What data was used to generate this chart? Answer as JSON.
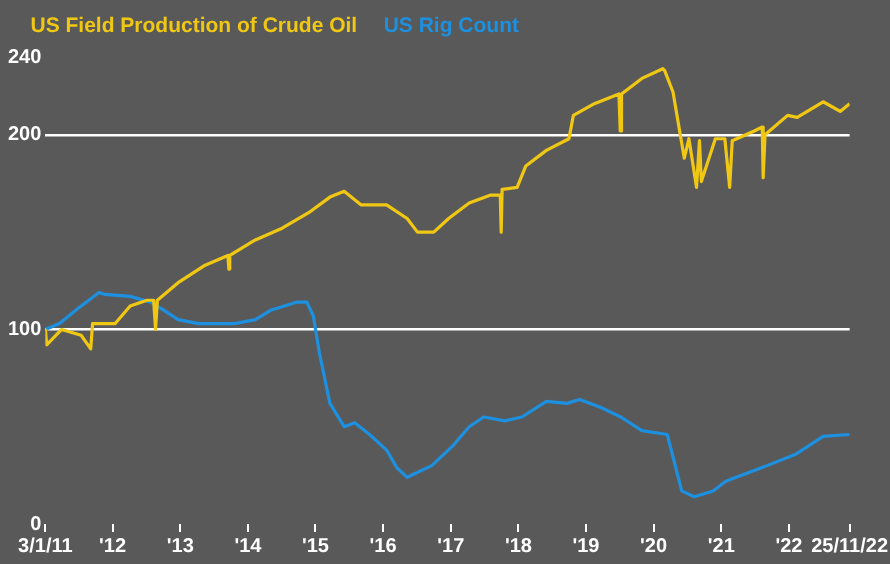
{
  "chart_data": {
    "type": "line",
    "legend": "top left",
    "grid": "y",
    "marker": "none",
    "line_style": "solid",
    "ylim": [
      0,
      240
    ],
    "yticks": [
      0,
      100,
      200,
      240
    ],
    "xlim": [
      "2011-01-03",
      "2022-11-25"
    ],
    "xticks": [
      {
        "value": "2011-01-03",
        "label": "3/1/11"
      },
      {
        "value": "2012-01-01",
        "label": "'12"
      },
      {
        "value": "2013-01-01",
        "label": "'13"
      },
      {
        "value": "2014-01-01",
        "label": "'14"
      },
      {
        "value": "2015-01-01",
        "label": "'15"
      },
      {
        "value": "2016-01-01",
        "label": "'16"
      },
      {
        "value": "2017-01-01",
        "label": "'17"
      },
      {
        "value": "2018-01-01",
        "label": "'18"
      },
      {
        "value": "2019-01-01",
        "label": "'19"
      },
      {
        "value": "2020-01-01",
        "label": "'20"
      },
      {
        "value": "2021-01-01",
        "label": "'21"
      },
      {
        "value": "2022-01-01",
        "label": "'22"
      },
      {
        "value": "2022-11-25",
        "label": "25/11/22"
      }
    ],
    "series": [
      {
        "name": "US Field Production of Crude Oil",
        "color": "#f0c814",
        "x": [
          "2011-01-03",
          "2011-01-10",
          "2011-04-01",
          "2011-07-15",
          "2011-09-05",
          "2011-09-15",
          "2012-01-15",
          "2012-04-05",
          "2012-07-05",
          "2012-08-10",
          "2012-08-20",
          "2012-08-30",
          "2012-12-20",
          "2013-05-15",
          "2013-09-15",
          "2013-09-20",
          "2013-09-25",
          "2014-02-10",
          "2014-07-05",
          "2014-11-25",
          "2015-03-20",
          "2015-06-05",
          "2015-09-05",
          "2016-01-20",
          "2016-05-10",
          "2016-07-05",
          "2016-10-01",
          "2016-12-20",
          "2017-04-10",
          "2017-08-01",
          "2017-09-25",
          "2017-09-30",
          "2017-10-05",
          "2017-12-25",
          "2018-02-10",
          "2018-06-01",
          "2018-10-01",
          "2018-10-25",
          "2019-02-15",
          "2019-06-28",
          "2019-07-05",
          "2019-07-12",
          "2019-10-30",
          "2020-02-20",
          "2020-03-01",
          "2020-04-15",
          "2020-06-15",
          "2020-07-10",
          "2020-08-20",
          "2020-09-05",
          "2020-09-15",
          "2020-11-30",
          "2021-01-20",
          "2021-02-15",
          "2021-03-01",
          "2021-06-28",
          "2021-08-10",
          "2021-08-15",
          "2021-08-25",
          "2021-12-25",
          "2022-02-15",
          "2022-07-05",
          "2022-10-05",
          "2022-11-25"
        ],
        "values": [
          100,
          92,
          100,
          97,
          90,
          103,
          103,
          112,
          115,
          115,
          100,
          115,
          124,
          133,
          138,
          131,
          138,
          146,
          152,
          160,
          168,
          171,
          164,
          164,
          157,
          150,
          150,
          157,
          165,
          169,
          169,
          150,
          172,
          173,
          184,
          192,
          198,
          210,
          216,
          221,
          202,
          221,
          229,
          234,
          233,
          222,
          188,
          198,
          173,
          197,
          176,
          198,
          198,
          173,
          197,
          202,
          204,
          178,
          200,
          210,
          209,
          217,
          212,
          216
        ]
      },
      {
        "name": "US Rig Count",
        "color": "#1e90e0",
        "x": [
          "2011-01-03",
          "2011-03-20",
          "2011-07-01",
          "2011-10-20",
          "2011-11-20",
          "2012-04-05",
          "2012-07-25",
          "2012-10-01",
          "2012-12-20",
          "2013-04-10",
          "2013-10-20",
          "2014-02-10",
          "2014-05-08",
          "2014-09-20",
          "2014-11-15",
          "2014-12-20",
          "2015-01-22",
          "2015-03-20",
          "2015-06-05",
          "2015-08-01",
          "2015-10-20",
          "2016-01-20",
          "2016-03-15",
          "2016-05-10",
          "2016-09-20",
          "2017-01-10",
          "2017-04-10",
          "2017-06-28",
          "2017-10-20",
          "2018-01-20",
          "2018-06-01",
          "2018-09-20",
          "2018-11-28",
          "2019-03-20",
          "2019-07-08",
          "2019-10-30",
          "2020-03-15",
          "2020-06-01",
          "2020-08-08",
          "2020-11-18",
          "2021-01-25",
          "2021-09-05",
          "2022-02-10",
          "2022-07-05",
          "2022-11-25"
        ],
        "values": [
          100,
          103,
          111,
          119,
          118,
          117,
          114,
          110,
          105,
          103,
          103,
          105,
          110,
          114,
          114,
          107,
          88,
          62,
          50,
          52,
          46,
          38,
          29,
          24,
          30,
          40,
          50,
          55,
          53,
          55,
          63,
          62,
          64,
          60,
          55,
          48,
          46,
          17,
          14,
          17,
          22,
          30,
          36,
          45,
          46
        ]
      }
    ]
  }
}
